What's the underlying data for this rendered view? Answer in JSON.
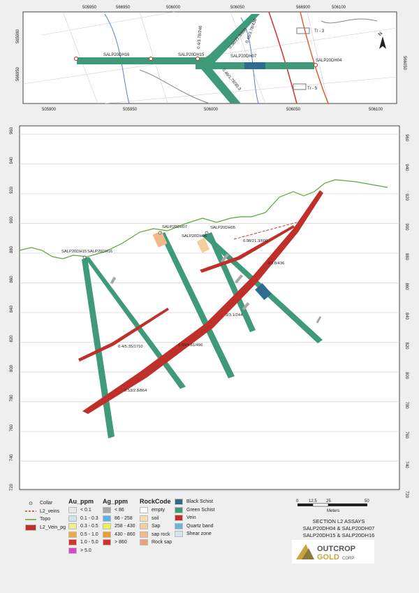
{
  "plan_map": {
    "top_easting_labels": [
      "505950",
      "566950",
      "506000",
      "506050",
      "566900",
      "506100"
    ],
    "bottom_easting_labels": [
      "505900",
      "505950",
      "506000",
      "506050",
      "506100"
    ],
    "left_northing_labels": [
      "565980",
      "566950"
    ],
    "right_northing_labels": [
      "566050"
    ],
    "hole_labels": [
      "SALP20DH16",
      "SALP20DH15",
      "SALP20DH07",
      "SALP20DH04"
    ],
    "intercept_labels": [
      "0.4/3.78/246",
      "0.98/21.3/600",
      "0.46/1.78/30.3",
      "0.45/3.78/436"
    ],
    "trench_labels": [
      "Tr - 3",
      "Tr - 5"
    ],
    "north_label": "N"
  },
  "section": {
    "elevation_labels": [
      "960",
      "940",
      "920",
      "900",
      "880",
      "860",
      "840",
      "820",
      "800",
      "780",
      "760",
      "740",
      "720"
    ],
    "hole_labels": [
      "SALP20DH15",
      "SALP20DH16",
      "SALP20DH07",
      "SALP20DH05",
      "SALP20DH06"
    ],
    "intercepts": [
      "0.98/21.3/600",
      "4/3.8/436",
      "3/3.1/244",
      "0.4/5.35/1710",
      "0.59/4.81/496",
      "0.53/2.8/864"
    ]
  },
  "legend": {
    "symbols": [
      {
        "label": "Collar"
      },
      {
        "label": "L2_veins",
        "color": "#d23a2e"
      },
      {
        "label": "Topo",
        "color": "#5aa832"
      },
      {
        "label": "L2_Vein_pg",
        "color": "#c0302a"
      }
    ],
    "au": {
      "title": "Au_ppm",
      "items": [
        {
          "label": "< 0.1",
          "color": "#e6e6e6"
        },
        {
          "label": "0.1 - 0.3",
          "color": "#cfe3f5"
        },
        {
          "label": "0.3 - 0.5",
          "color": "#eef08a"
        },
        {
          "label": "0.5 - 1.0",
          "color": "#f2a840"
        },
        {
          "label": "1.0 - 5.0",
          "color": "#d6302a"
        },
        {
          "label": "> 5.0",
          "color": "#e040d0"
        }
      ]
    },
    "ag": {
      "title": "Ag_ppm",
      "items": [
        {
          "label": "< 86",
          "color": "#a8a8a8"
        },
        {
          "label": "86 - 258",
          "color": "#5bb3ea"
        },
        {
          "label": "258 - 430",
          "color": "#eef05a"
        },
        {
          "label": "430 - 860",
          "color": "#f09a30"
        },
        {
          "label": "> 860",
          "color": "#d6302a"
        }
      ]
    },
    "rock": {
      "title": "RockCode",
      "items": [
        {
          "label": "empty",
          "color": "#ffffff"
        },
        {
          "label": "soil",
          "color": "#f5deb3"
        },
        {
          "label": "Sap",
          "color": "#f3cf9a"
        },
        {
          "label": "sap rock",
          "color": "#f4b98a"
        },
        {
          "label": "Rock sap",
          "color": "#efa07a"
        }
      ]
    },
    "lith": {
      "items": [
        {
          "label": "Black Schist",
          "color": "#2d6c8f"
        },
        {
          "label": "Green Schist",
          "color": "#3e9a78"
        },
        {
          "label": "Vein",
          "color": "#c0302a"
        },
        {
          "label": "Quartz band",
          "color": "#6bb5d6"
        },
        {
          "label": "Shear zone",
          "color": "#cfe3f5"
        }
      ]
    }
  },
  "scale": {
    "ticks": [
      "0",
      "12.5",
      "25",
      "50"
    ],
    "unit": "Meters"
  },
  "title": {
    "line1": "SECTION L2 ASSAYS",
    "line2": "SALP20DH04 & SALP20DH07",
    "line3": "SALP20DH15 & SALP20DH16"
  },
  "logo": {
    "word1": "OUTCROP",
    "word2": "GOLD",
    "suffix": "CORP"
  }
}
